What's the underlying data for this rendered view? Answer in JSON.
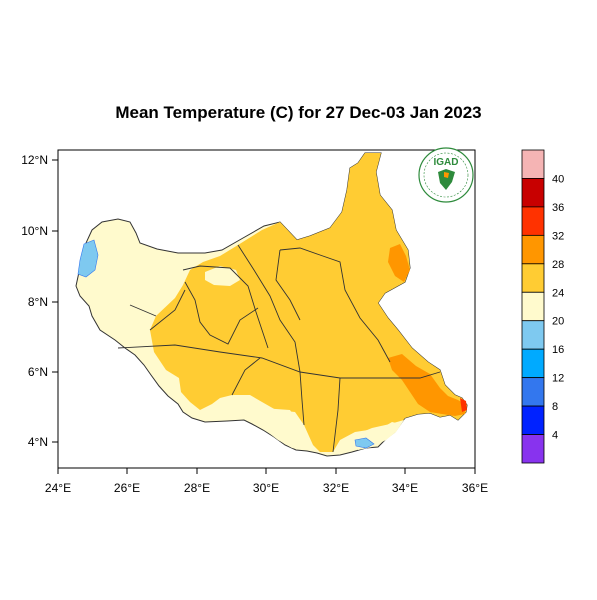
{
  "title": "Mean Temperature (C) for 27 Dec-03 Jan 2023",
  "logo_text": "IGAD",
  "axes": {
    "x_ticks": [
      "24°E",
      "26°E",
      "28°E",
      "30°E",
      "32°E",
      "34°E",
      "36°E"
    ],
    "y_ticks": [
      "12°N",
      "10°N",
      "8°N",
      "6°N",
      "4°N"
    ]
  },
  "colorbar": {
    "labels": [
      "40",
      "36",
      "32",
      "28",
      "24",
      "20",
      "16",
      "12",
      "8",
      "4"
    ],
    "colors": [
      "#f5b4b4",
      "#c80000",
      "#ff3200",
      "#ff9600",
      "#ffcc33",
      "#fffacd",
      "#7ec9f0",
      "#00aaff",
      "#3377ee",
      "#0022ff",
      "#8833ee"
    ]
  },
  "chart_data": {
    "type": "heatmap",
    "title": "Mean Temperature (C) for 27 Dec-03 Jan 2023",
    "x_range": [
      24,
      36
    ],
    "y_range": [
      3.5,
      12.2
    ],
    "colorbar_levels": [
      4,
      8,
      12,
      16,
      20,
      24,
      28,
      32,
      36,
      40
    ]
  },
  "colors": {
    "temp_20_24": "#fffacd",
    "temp_24_28": "#ffcc33",
    "temp_28_32": "#ff9600",
    "temp_32_36": "#ff3200",
    "temp_16_20": "#7ec9f0",
    "boundary": "#333333",
    "logo_green": "#2e8b3c"
  }
}
